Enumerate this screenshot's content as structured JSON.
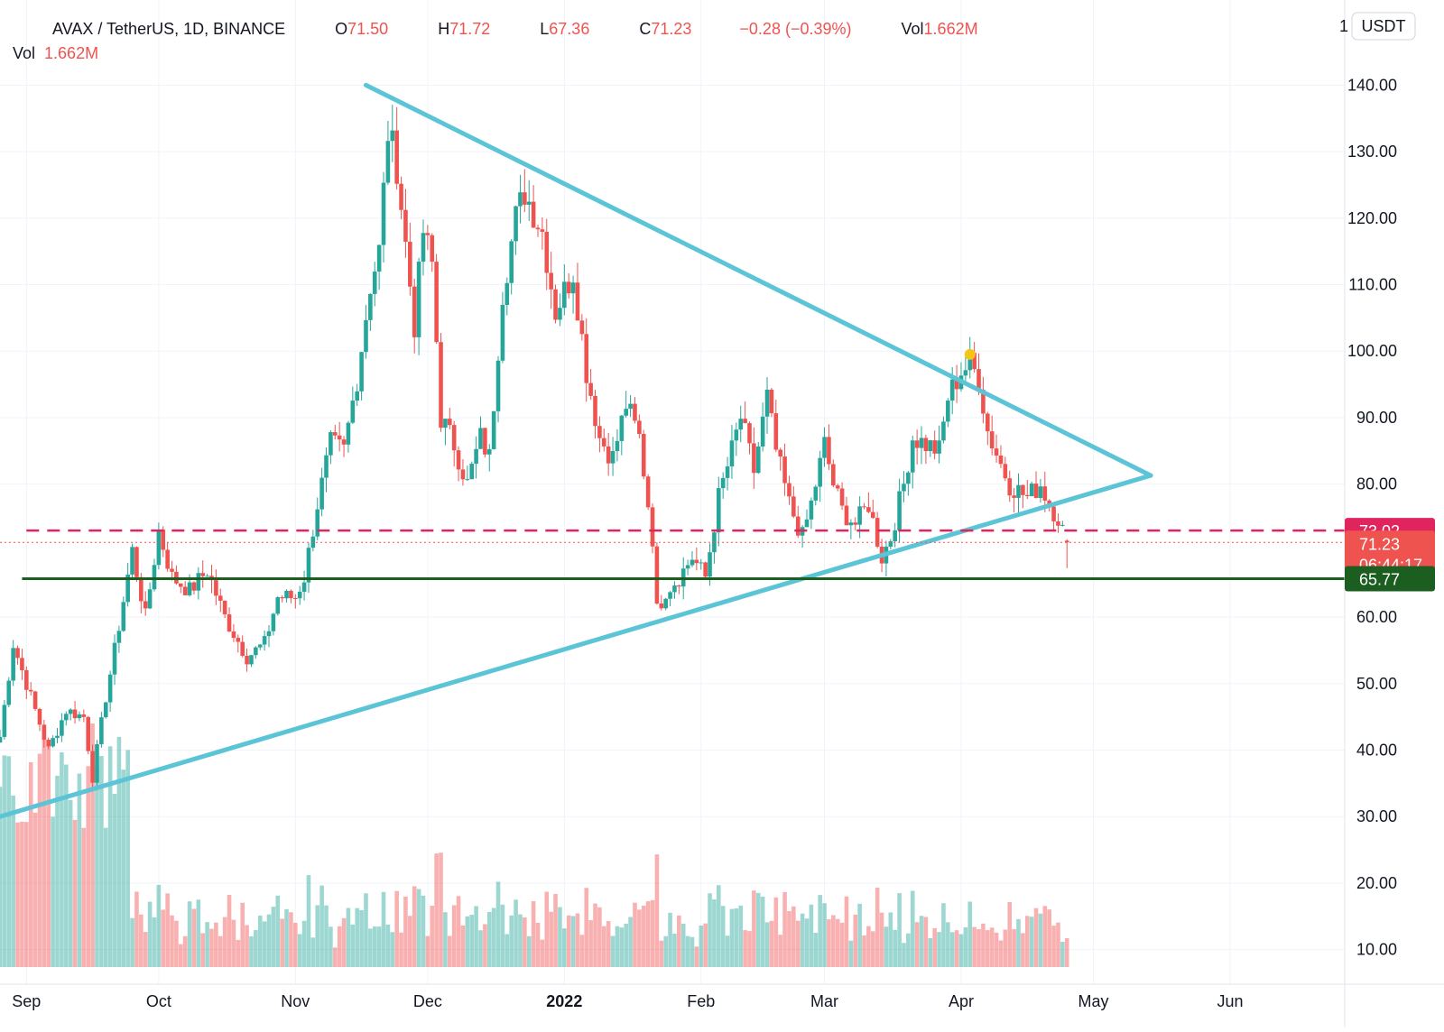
{
  "legend": {
    "symbol": "AVAX / TetherUS, 1D, BINANCE",
    "o_label": "O",
    "o_value": "71.50",
    "h_label": "H",
    "h_value": "71.72",
    "l_label": "L",
    "l_value": "67.36",
    "c_label": "C",
    "c_value": "71.23",
    "change": "−0.28 (−0.39%)",
    "vol_label": "Vol",
    "vol_value": "1.662M",
    "vol_row_label": "Vol",
    "vol_row_value": "1.662M"
  },
  "currency_button": "USDT",
  "price_badges": {
    "alert_level": "73.02",
    "last_price": "71.23",
    "countdown": "06:44:17",
    "support_level": "65.77"
  },
  "colors": {
    "up": "#26a69a",
    "down": "#ef5350",
    "triangle_line": "#5bc4d6",
    "alert_line": "#e0245e",
    "support_line": "#1b5e20",
    "last_price_badge": "#ef5350",
    "marker": "#f5c518"
  },
  "chart_data": {
    "type": "candlestick",
    "symbol": "AVAX / TetherUS",
    "interval": "1D",
    "exchange": "BINANCE",
    "y_ticks": [
      10,
      20,
      30,
      40,
      50,
      60,
      80,
      90,
      100,
      110,
      120,
      130,
      140
    ],
    "y_tick_labels": [
      "10.00",
      "20.00",
      "30.00",
      "40.00",
      "50.00",
      "60.00",
      "80.00",
      "90.00",
      "100.00",
      "110.00",
      "120.00",
      "130.00",
      "140.00"
    ],
    "y_top_tick_fragment": "1",
    "ylim": [
      4.8,
      152.8
    ],
    "x_tick_labels": [
      {
        "date": "2021-09-01",
        "label": "Sep"
      },
      {
        "date": "2021-10-01",
        "label": "Oct"
      },
      {
        "date": "2021-11-01",
        "label": "Nov"
      },
      {
        "date": "2021-12-01",
        "label": "Dec"
      },
      {
        "date": "2022-01-01",
        "label": "2022"
      },
      {
        "date": "2022-02-01",
        "label": "Feb"
      },
      {
        "date": "2022-03-01",
        "label": "Mar"
      },
      {
        "date": "2022-04-01",
        "label": "Apr"
      },
      {
        "date": "2022-05-01",
        "label": "May"
      },
      {
        "date": "2022-06-01",
        "label": "Jun"
      }
    ],
    "xlim": [
      "2021-08-26",
      "2022-06-27"
    ],
    "grid": true,
    "anchors": [
      {
        "date": "2021-08-26",
        "close": 42
      },
      {
        "date": "2021-08-29",
        "close": 56
      },
      {
        "date": "2021-09-02",
        "close": 48
      },
      {
        "date": "2021-09-06",
        "close": 40
      },
      {
        "date": "2021-09-10",
        "close": 46
      },
      {
        "date": "2021-09-14",
        "close": 45
      },
      {
        "date": "2021-09-16",
        "close": 36
      },
      {
        "date": "2021-09-19",
        "close": 48
      },
      {
        "date": "2021-09-21",
        "close": 55
      },
      {
        "date": "2021-09-25",
        "close": 70
      },
      {
        "date": "2021-09-28",
        "close": 60
      },
      {
        "date": "2021-10-01",
        "close": 73
      },
      {
        "date": "2021-10-04",
        "close": 66
      },
      {
        "date": "2021-10-08",
        "close": 64
      },
      {
        "date": "2021-10-12",
        "close": 67
      },
      {
        "date": "2021-10-16",
        "close": 60
      },
      {
        "date": "2021-10-21",
        "close": 54
      },
      {
        "date": "2021-10-25",
        "close": 56
      },
      {
        "date": "2021-10-28",
        "close": 63
      },
      {
        "date": "2021-11-01",
        "close": 63
      },
      {
        "date": "2021-11-03",
        "close": 66
      },
      {
        "date": "2021-11-06",
        "close": 77
      },
      {
        "date": "2021-11-09",
        "close": 86
      },
      {
        "date": "2021-11-12",
        "close": 85
      },
      {
        "date": "2021-11-15",
        "close": 96
      },
      {
        "date": "2021-11-18",
        "close": 110
      },
      {
        "date": "2021-11-20",
        "close": 115
      },
      {
        "date": "2021-11-22",
        "close": 133
      },
      {
        "date": "2021-11-24",
        "close": 128
      },
      {
        "date": "2021-11-26",
        "close": 116
      },
      {
        "date": "2021-11-28",
        "close": 104
      },
      {
        "date": "2021-11-30",
        "close": 118
      },
      {
        "date": "2021-12-02",
        "close": 113
      },
      {
        "date": "2021-12-04",
        "close": 90
      },
      {
        "date": "2021-12-07",
        "close": 86
      },
      {
        "date": "2021-12-10",
        "close": 80
      },
      {
        "date": "2021-12-13",
        "close": 87
      },
      {
        "date": "2021-12-15",
        "close": 84
      },
      {
        "date": "2021-12-18",
        "close": 109
      },
      {
        "date": "2021-12-21",
        "close": 120
      },
      {
        "date": "2021-12-23",
        "close": 124
      },
      {
        "date": "2021-12-27",
        "close": 118
      },
      {
        "date": "2021-12-30",
        "close": 106
      },
      {
        "date": "2022-01-03",
        "close": 112
      },
      {
        "date": "2022-01-06",
        "close": 97
      },
      {
        "date": "2022-01-09",
        "close": 87
      },
      {
        "date": "2022-01-12",
        "close": 84
      },
      {
        "date": "2022-01-15",
        "close": 92
      },
      {
        "date": "2022-01-18",
        "close": 87
      },
      {
        "date": "2022-01-21",
        "close": 72
      },
      {
        "date": "2022-01-22",
        "close": 61
      },
      {
        "date": "2022-01-24",
        "close": 64
      },
      {
        "date": "2022-01-27",
        "close": 66
      },
      {
        "date": "2022-01-30",
        "close": 69
      },
      {
        "date": "2022-02-02",
        "close": 66
      },
      {
        "date": "2022-02-05",
        "close": 78
      },
      {
        "date": "2022-02-08",
        "close": 85
      },
      {
        "date": "2022-02-10",
        "close": 90
      },
      {
        "date": "2022-02-13",
        "close": 82
      },
      {
        "date": "2022-02-16",
        "close": 93
      },
      {
        "date": "2022-02-18",
        "close": 85
      },
      {
        "date": "2022-02-21",
        "close": 77
      },
      {
        "date": "2022-02-24",
        "close": 72
      },
      {
        "date": "2022-02-26",
        "close": 77
      },
      {
        "date": "2022-03-01",
        "close": 86
      },
      {
        "date": "2022-03-03",
        "close": 80
      },
      {
        "date": "2022-03-05",
        "close": 76
      },
      {
        "date": "2022-03-08",
        "close": 74
      },
      {
        "date": "2022-03-11",
        "close": 77
      },
      {
        "date": "2022-03-14",
        "close": 69
      },
      {
        "date": "2022-03-16",
        "close": 72
      },
      {
        "date": "2022-03-19",
        "close": 80
      },
      {
        "date": "2022-03-21",
        "close": 87
      },
      {
        "date": "2022-03-24",
        "close": 86
      },
      {
        "date": "2022-03-27",
        "close": 85
      },
      {
        "date": "2022-03-29",
        "close": 93
      },
      {
        "date": "2022-04-01",
        "close": 97
      },
      {
        "date": "2022-04-03",
        "close": 98
      },
      {
        "date": "2022-04-05",
        "close": 96
      },
      {
        "date": "2022-04-07",
        "close": 88
      },
      {
        "date": "2022-04-10",
        "close": 83
      },
      {
        "date": "2022-04-12",
        "close": 80
      },
      {
        "date": "2022-04-14",
        "close": 79
      },
      {
        "date": "2022-04-16",
        "close": 78
      },
      {
        "date": "2022-04-19",
        "close": 80
      },
      {
        "date": "2022-04-21",
        "close": 77
      },
      {
        "date": "2022-04-23",
        "close": 75
      },
      {
        "date": "2022-04-25",
        "close": 71.23
      }
    ],
    "last_candle": {
      "date": "2022-04-25",
      "open": 71.5,
      "high": 71.72,
      "low": 67.36,
      "close": 71.23,
      "volume": "1.662M"
    },
    "drawings": [
      {
        "kind": "trendline",
        "name": "upper-trendline",
        "from": {
          "date": "2021-11-17",
          "price": 140.0
        },
        "to": {
          "date": "2022-05-14",
          "price": 81.3
        }
      },
      {
        "kind": "trendline",
        "name": "lower-trendline",
        "from": {
          "date": "2021-08-26",
          "price": 30.0
        },
        "to": {
          "date": "2022-05-14",
          "price": 81.3
        }
      },
      {
        "kind": "horizontal",
        "name": "alert-line",
        "price": 73.02,
        "style": "dashed",
        "from_date": "2021-09-01"
      },
      {
        "kind": "horizontal",
        "name": "support-line",
        "price": 65.77,
        "style": "solid",
        "from_date": "2021-08-31"
      },
      {
        "kind": "marker",
        "name": "yellow-marker",
        "date": "2022-04-03",
        "price": 99.5
      }
    ]
  }
}
